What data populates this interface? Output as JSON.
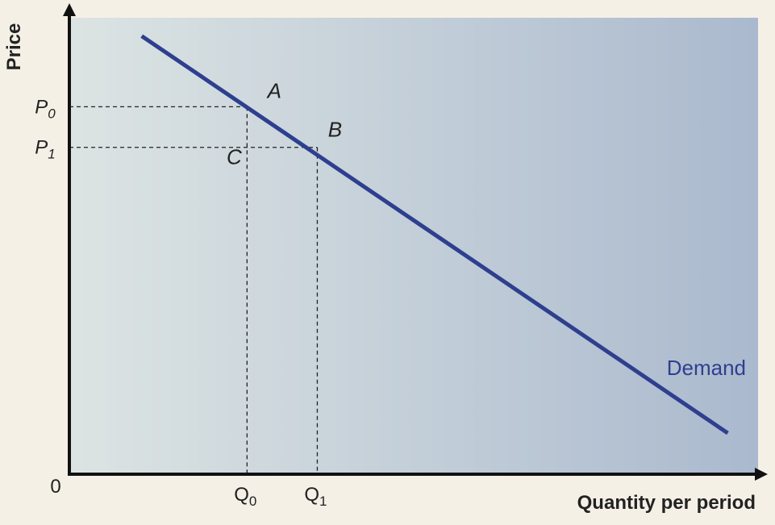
{
  "chart_data": {
    "type": "line",
    "title": "",
    "xlabel": "Quantity per period",
    "ylabel": "Price",
    "origin_label": "0",
    "xlim": [
      0,
      100
    ],
    "ylim": [
      0,
      100
    ],
    "grid": false,
    "series": [
      {
        "name": "Demand",
        "x": [
          10.5,
          95.6
        ],
        "y": [
          96,
          9
        ]
      }
    ],
    "guides": [
      {
        "axis": "y",
        "value": 80.5,
        "label": "P",
        "subscript": "0",
        "to_x": 25.8
      },
      {
        "axis": "y",
        "value": 71.6,
        "label": "P",
        "subscript": "1",
        "to_x": 36.0
      },
      {
        "axis": "x",
        "value": 25.8,
        "label": "Q",
        "subscript": "0",
        "to_y": 80.5
      },
      {
        "axis": "x",
        "value": 36.0,
        "label": "Q",
        "subscript": "1",
        "to_y": 71.6
      }
    ],
    "points": [
      {
        "label": "A",
        "x": 25.8,
        "y": 80.5
      },
      {
        "label": "B",
        "x": 36.0,
        "y": 71.6
      },
      {
        "label": "C",
        "x": 25.8,
        "y": 71.6
      }
    ]
  },
  "colors": {
    "demand_line": "#2e3f8f",
    "axis": "#111111",
    "plot_gradient_left": "#dce4e3",
    "plot_gradient_right": "#aab9ce",
    "page_background": "#f5f0e6"
  }
}
